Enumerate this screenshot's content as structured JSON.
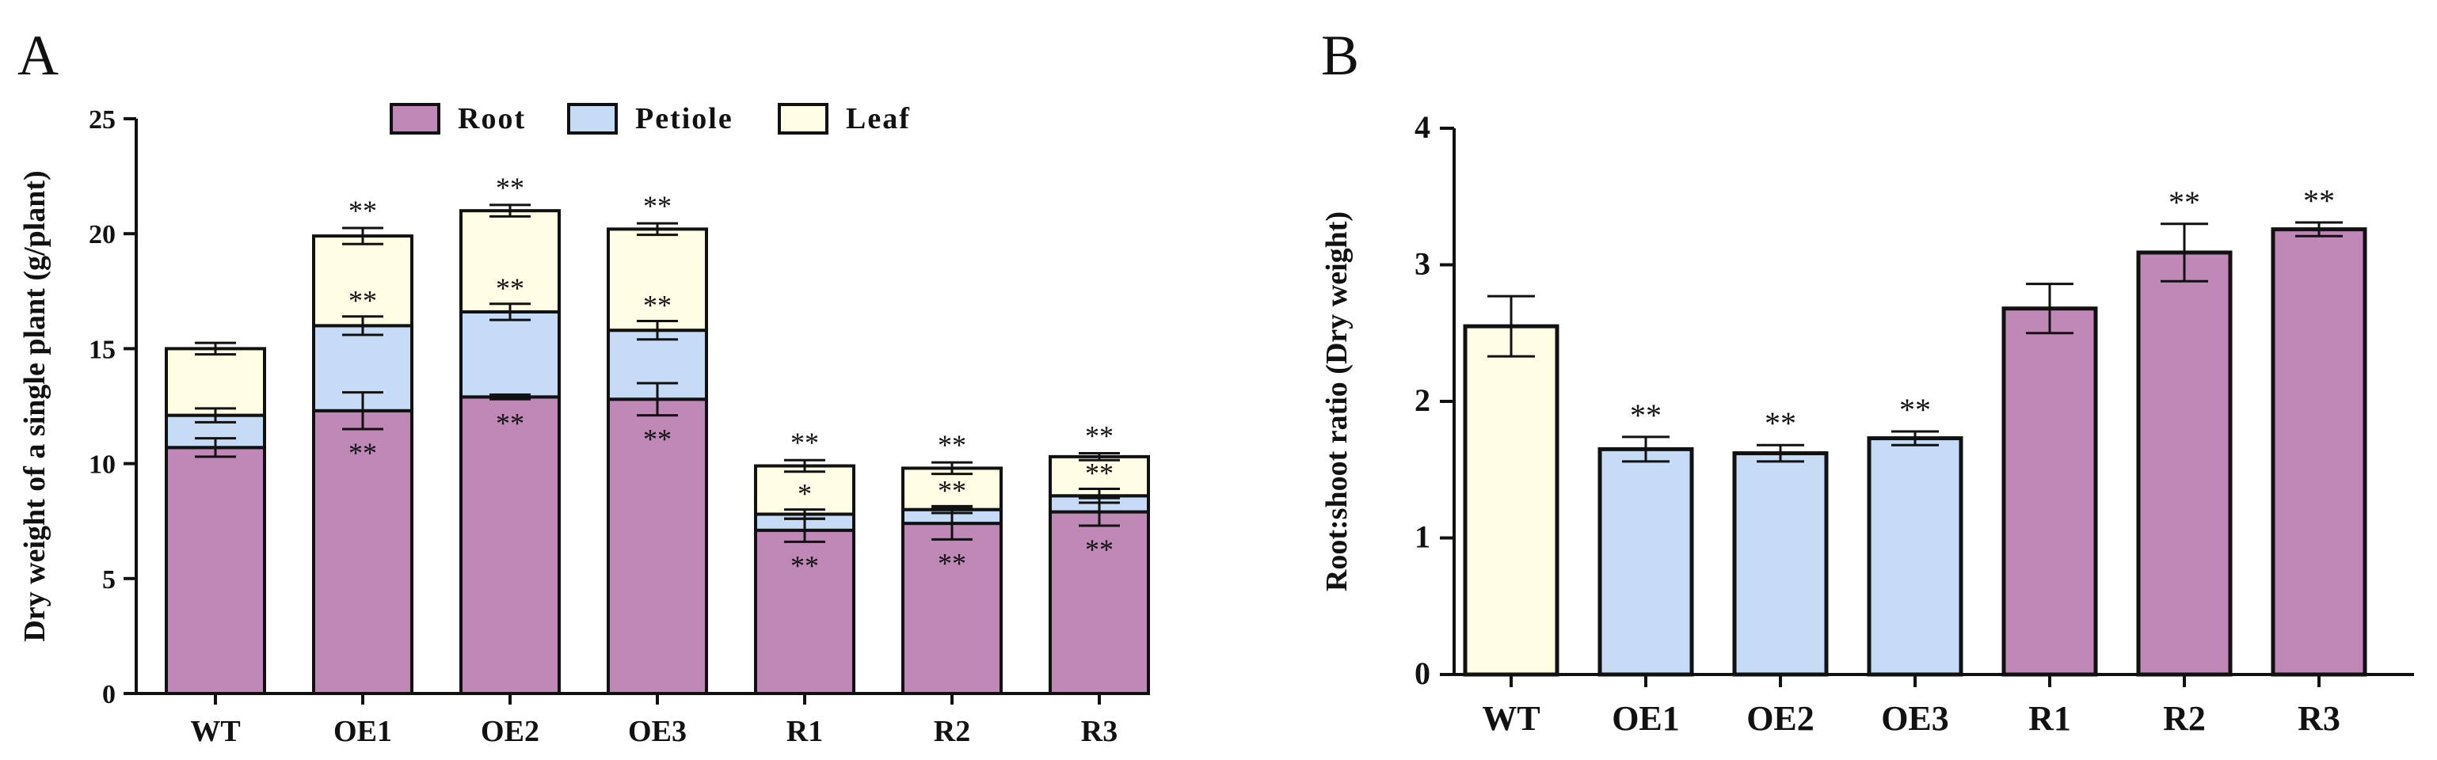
{
  "colors": {
    "root": "#bf88b7",
    "petiole": "#c6dbf5",
    "leaf": "#fffde3",
    "outline": "#111111"
  },
  "chart_data": [
    {
      "panel": "A",
      "type": "bar",
      "stacked": true,
      "ylabel": "Dry weight of a single plant (g/plant)",
      "ylim": [
        0,
        25
      ],
      "yticks": [
        0,
        5,
        10,
        15,
        20,
        25
      ],
      "categories": [
        "WT",
        "OE1",
        "OE2",
        "OE3",
        "R1",
        "R2",
        "R3"
      ],
      "legend_position": "top",
      "series": [
        {
          "name": "Root",
          "color_key": "root",
          "values": [
            10.7,
            12.3,
            12.9,
            12.8,
            7.1,
            7.4,
            7.9
          ],
          "errors": [
            0.4,
            0.8,
            0.1,
            0.7,
            0.5,
            0.7,
            0.6
          ],
          "significance": [
            "",
            "**",
            "**",
            "**",
            "**",
            "**",
            "**"
          ]
        },
        {
          "name": "Petiole",
          "color_key": "petiole",
          "values": [
            1.4,
            3.7,
            3.7,
            3.0,
            0.7,
            0.6,
            0.7
          ],
          "errors": [
            0.3,
            0.4,
            0.35,
            0.4,
            0.2,
            0.15,
            0.3
          ],
          "significance": [
            "",
            "**",
            "**",
            "**",
            "*",
            "**",
            "**"
          ]
        },
        {
          "name": "Leaf",
          "color_key": "leaf",
          "values": [
            2.9,
            3.9,
            4.4,
            4.4,
            2.1,
            1.8,
            1.7
          ],
          "errors": [
            0.25,
            0.35,
            0.25,
            0.25,
            0.25,
            0.25,
            0.15
          ],
          "significance": [
            "",
            "**",
            "**",
            "**",
            "**",
            "**",
            "**"
          ]
        }
      ]
    },
    {
      "panel": "B",
      "type": "bar",
      "ylabel": "Root:shoot ratio (Dry weight)",
      "ylim": [
        0,
        4
      ],
      "yticks": [
        0,
        1,
        2,
        3,
        4
      ],
      "categories": [
        "WT",
        "OE1",
        "OE2",
        "OE3",
        "R1",
        "R2",
        "R3"
      ],
      "values": [
        2.55,
        1.65,
        1.62,
        1.73,
        2.68,
        3.09,
        3.26
      ],
      "errors": [
        0.22,
        0.09,
        0.06,
        0.05,
        0.18,
        0.21,
        0.05
      ],
      "significance": [
        "",
        "**",
        "**",
        "**",
        "",
        "**",
        "**"
      ],
      "bar_color_keys": [
        "leaf",
        "petiole",
        "petiole",
        "petiole",
        "root",
        "root",
        "root"
      ]
    }
  ]
}
